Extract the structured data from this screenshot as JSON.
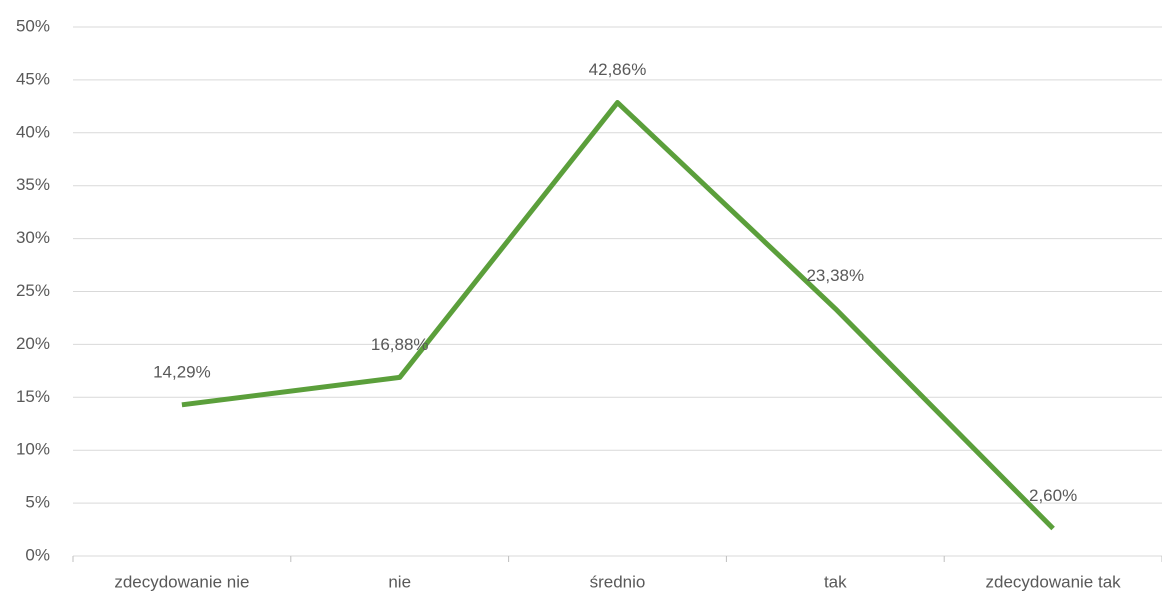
{
  "chart_data": {
    "type": "line",
    "categories": [
      "zdecydowanie nie",
      "nie",
      "średnio",
      "tak",
      "zdecydowanie tak"
    ],
    "series": [
      {
        "color": "#5b9f3b",
        "values": [
          14.29,
          16.88,
          42.86,
          23.38,
          2.6
        ],
        "value_labels": [
          "14,29%",
          "16,88%",
          "42,86%",
          "23,38%",
          "2,60%"
        ]
      }
    ],
    "ylim": [
      0,
      50
    ],
    "yticks": [
      {
        "value": 0,
        "label": "0%"
      },
      {
        "value": 5,
        "label": "5%"
      },
      {
        "value": 10,
        "label": "10%"
      },
      {
        "value": 15,
        "label": "15%"
      },
      {
        "value": 20,
        "label": "20%"
      },
      {
        "value": 25,
        "label": "25%"
      },
      {
        "value": 30,
        "label": "30%"
      },
      {
        "value": 35,
        "label": "35%"
      },
      {
        "value": 40,
        "label": "40%"
      },
      {
        "value": 45,
        "label": "45%"
      },
      {
        "value": 50,
        "label": "50%"
      }
    ],
    "grid": true
  }
}
